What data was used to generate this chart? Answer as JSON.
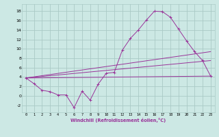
{
  "xlabel": "Windchill (Refroidissement éolien,°C)",
  "background_color": "#cce8e4",
  "grid_color": "#aacac6",
  "line_color": "#993399",
  "xlim": [
    -0.5,
    23.5
  ],
  "ylim": [
    -3.5,
    19.5
  ],
  "xticks": [
    0,
    1,
    2,
    3,
    4,
    5,
    6,
    7,
    8,
    9,
    10,
    11,
    12,
    13,
    14,
    15,
    16,
    17,
    18,
    19,
    20,
    21,
    22,
    23
  ],
  "yticks": [
    -2,
    0,
    2,
    4,
    6,
    8,
    10,
    12,
    14,
    16,
    18
  ],
  "series": [
    {
      "x": [
        0,
        1,
        2,
        3,
        4,
        5,
        6,
        7,
        8,
        9,
        10,
        11,
        12,
        13,
        14,
        15,
        16,
        17,
        18,
        19,
        20,
        21,
        22,
        23
      ],
      "y": [
        3.8,
        2.6,
        1.2,
        0.9,
        0.2,
        0.2,
        -2.5,
        1.0,
        -0.9,
        2.5,
        4.8,
        5.0,
        9.7,
        12.2,
        14.0,
        16.1,
        18.0,
        17.9,
        16.7,
        14.2,
        11.7,
        9.4,
        7.5,
        4.2
      ],
      "marker": "+"
    },
    {
      "x": [
        0,
        23
      ],
      "y": [
        3.8,
        4.2
      ],
      "marker": null
    },
    {
      "x": [
        0,
        23
      ],
      "y": [
        3.8,
        9.4
      ],
      "marker": null
    },
    {
      "x": [
        0,
        23
      ],
      "y": [
        3.8,
        7.5
      ],
      "marker": null
    }
  ]
}
